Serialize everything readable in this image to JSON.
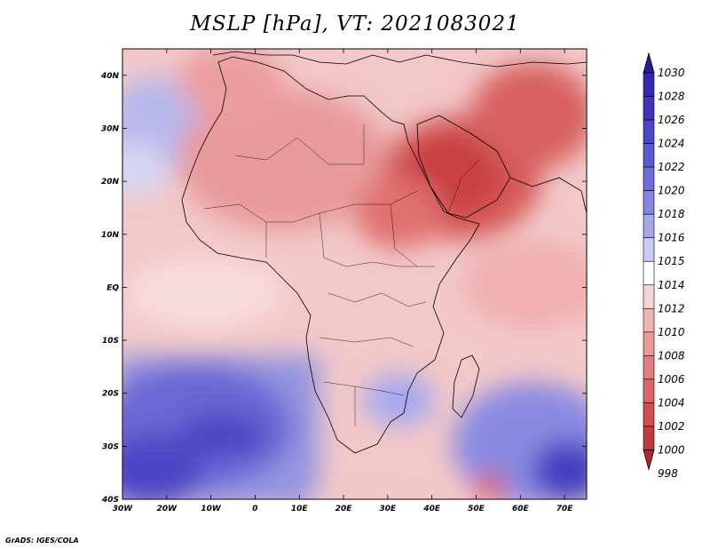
{
  "title": "MSLP [hPa], VT: 2021083021",
  "credit": "GrADS: IGES/COLA",
  "map": {
    "lon_ticks": [
      "30W",
      "20W",
      "10W",
      "0",
      "10E",
      "20E",
      "30E",
      "40E",
      "50E",
      "60E",
      "70E"
    ],
    "lat_ticks": [
      "40N",
      "30N",
      "20N",
      "10N",
      "EQ",
      "10S",
      "20S",
      "30S",
      "40S"
    ],
    "lon_range": [
      -30,
      75
    ],
    "lat_range": [
      -40,
      45
    ]
  },
  "colorbar": {
    "labels": [
      "1030",
      "1028",
      "1026",
      "1024",
      "1022",
      "1020",
      "1018",
      "1016",
      "1015",
      "1014",
      "1012",
      "1010",
      "1008",
      "1006",
      "1004",
      "1002",
      "1000",
      "998"
    ],
    "colors": [
      "#2a1a9c",
      "#3528b0",
      "#4034be",
      "#4c46c8",
      "#5c58d2",
      "#6e6cdc",
      "#8484e6",
      "#a4a6f0",
      "#c8caf8",
      "#ffffff",
      "#f6d4d4",
      "#f0b4b4",
      "#ea9898",
      "#e47e7e",
      "#dc6464",
      "#d24e4e",
      "#c43a3a",
      "#b42828"
    ]
  }
}
